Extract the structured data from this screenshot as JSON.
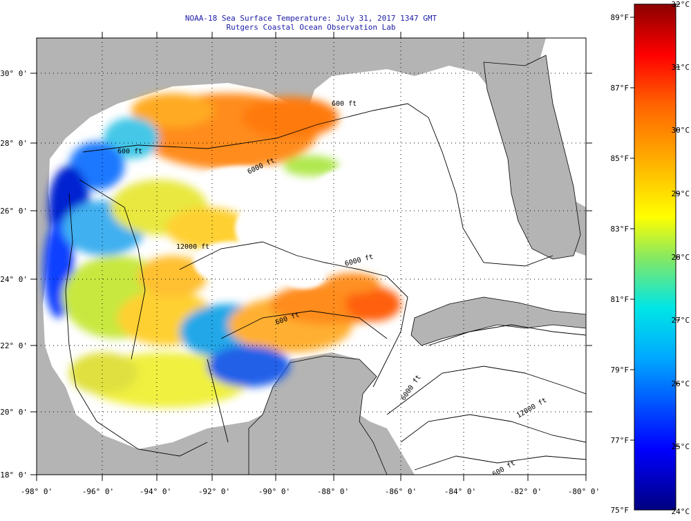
{
  "header": {
    "title": "NOAA-18 Sea Surface Temperature:  July 31, 2017 1347 GMT",
    "subtitle": "Rutgers Coastal Ocean Observation Lab"
  },
  "map": {
    "lon_ticks": [
      "-98° 0'",
      "-96° 0'",
      "-94° 0'",
      "-92° 0'",
      "-90° 0'",
      "-88° 0'",
      "-86° 0'",
      "-84° 0'",
      "-82° 0'",
      "-80° 0'"
    ],
    "lat_ticks": [
      "30° 0'",
      "28° 0'",
      "26° 0'",
      "24° 0'",
      "22° 0'",
      "20° 0'",
      "18° 0'"
    ],
    "contour_labels": [
      "600 ft",
      "600 ft",
      "6000 ft",
      "12000 ft",
      "6000 ft",
      "600 ft",
      "6000 ft",
      "12000 ft",
      "600 ft"
    ],
    "colors": {
      "land": "#b4b4b4",
      "no_data": "#ffffff",
      "title": "#1a1aa6"
    }
  },
  "colorbar": {
    "fahrenheit": [
      "89°F",
      "87°F",
      "85°F",
      "83°F",
      "81°F",
      "79°F",
      "77°F",
      "75°F"
    ],
    "celsius": [
      "32°C",
      "31°C",
      "30°C",
      "29°C",
      "28°C",
      "27°C",
      "26°C",
      "25°C",
      "24°C"
    ]
  }
}
